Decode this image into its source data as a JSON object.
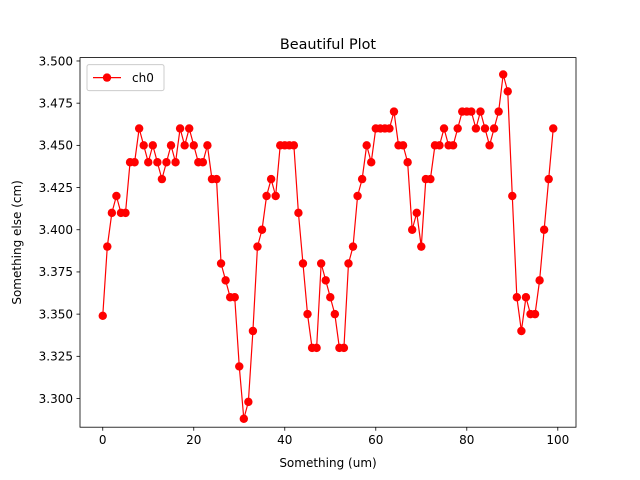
{
  "chart_data": {
    "type": "line",
    "title": "Beautiful Plot",
    "xlabel": "Something (um)",
    "ylabel": "Something else (cm)",
    "xlim": [
      -5,
      104
    ],
    "ylim": [
      3.283,
      3.502
    ],
    "xticks": [
      0,
      20,
      40,
      60,
      80,
      100
    ],
    "xtick_labels": [
      "0",
      "20",
      "40",
      "60",
      "80",
      "100"
    ],
    "yticks": [
      3.3,
      3.325,
      3.35,
      3.375,
      3.4,
      3.425,
      3.45,
      3.475,
      3.5
    ],
    "ytick_labels": [
      "3.300",
      "3.325",
      "3.350",
      "3.375",
      "3.400",
      "3.425",
      "3.450",
      "3.475",
      "3.500"
    ],
    "grid": false,
    "legend": {
      "placement": "upper-left",
      "entries": [
        "ch0"
      ]
    },
    "series": [
      {
        "name": "ch0",
        "color": "#ff0000",
        "marker": "circle",
        "x": [
          0,
          1,
          2,
          3,
          4,
          5,
          6,
          7,
          8,
          9,
          10,
          11,
          12,
          13,
          14,
          15,
          16,
          17,
          18,
          19,
          20,
          21,
          22,
          23,
          24,
          25,
          26,
          27,
          28,
          29,
          30,
          31,
          32,
          33,
          34,
          35,
          36,
          37,
          38,
          39,
          40,
          41,
          42,
          43,
          44,
          45,
          46,
          47,
          48,
          49,
          50,
          51,
          52,
          53,
          54,
          55,
          56,
          57,
          58,
          59,
          60,
          61,
          62,
          63,
          64,
          65,
          66,
          67,
          68,
          69,
          70,
          71,
          72,
          73,
          74,
          75,
          76,
          77,
          78,
          79,
          80,
          81,
          82,
          83,
          84,
          85,
          86,
          87,
          88,
          89,
          90,
          91,
          92,
          93,
          94,
          95,
          96,
          97,
          98,
          99
        ],
        "y": [
          3.349,
          3.39,
          3.41,
          3.42,
          3.41,
          3.41,
          3.44,
          3.44,
          3.46,
          3.45,
          3.44,
          3.45,
          3.44,
          3.43,
          3.44,
          3.45,
          3.44,
          3.46,
          3.45,
          3.46,
          3.45,
          3.44,
          3.44,
          3.45,
          3.43,
          3.43,
          3.38,
          3.37,
          3.36,
          3.36,
          3.319,
          3.288,
          3.298,
          3.34,
          3.39,
          3.4,
          3.42,
          3.43,
          3.42,
          3.45,
          3.45,
          3.45,
          3.45,
          3.41,
          3.38,
          3.35,
          3.33,
          3.33,
          3.38,
          3.37,
          3.36,
          3.35,
          3.33,
          3.33,
          3.38,
          3.39,
          3.42,
          3.43,
          3.45,
          3.44,
          3.46,
          3.46,
          3.46,
          3.46,
          3.47,
          3.45,
          3.45,
          3.44,
          3.4,
          3.41,
          3.39,
          3.43,
          3.43,
          3.45,
          3.45,
          3.46,
          3.45,
          3.45,
          3.46,
          3.47,
          3.47,
          3.47,
          3.46,
          3.47,
          3.46,
          3.45,
          3.46,
          3.47,
          3.492,
          3.482,
          3.42,
          3.36,
          3.34,
          3.36,
          3.35,
          3.35,
          3.37,
          3.4,
          3.43,
          3.46
        ]
      }
    ]
  }
}
